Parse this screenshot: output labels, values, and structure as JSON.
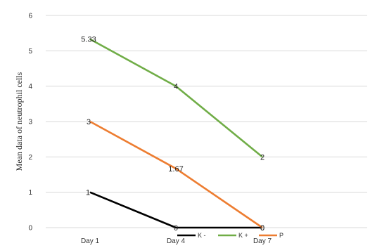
{
  "chart_data": {
    "type": "line",
    "categories": [
      "Day 1",
      "Day 4",
      "Day 7"
    ],
    "ylabel": "Mean data of neutrophil cells",
    "ylim": [
      0,
      6
    ],
    "yticks": [
      0,
      1,
      2,
      3,
      4,
      5,
      6
    ],
    "grid": true,
    "legend": "bottom",
    "series": [
      {
        "name": "K -",
        "color": "#000000",
        "values": [
          1,
          0,
          0
        ],
        "labels": [
          "1",
          "0",
          "0"
        ]
      },
      {
        "name": "K +",
        "color": "#70ad47",
        "values": [
          5.33,
          4,
          2
        ],
        "labels": [
          "5.33",
          "4",
          "2"
        ]
      },
      {
        "name": "P",
        "color": "#ed7d31",
        "values": [
          3,
          1.67,
          0
        ],
        "labels": [
          "3",
          "1.67",
          "0"
        ]
      }
    ]
  }
}
